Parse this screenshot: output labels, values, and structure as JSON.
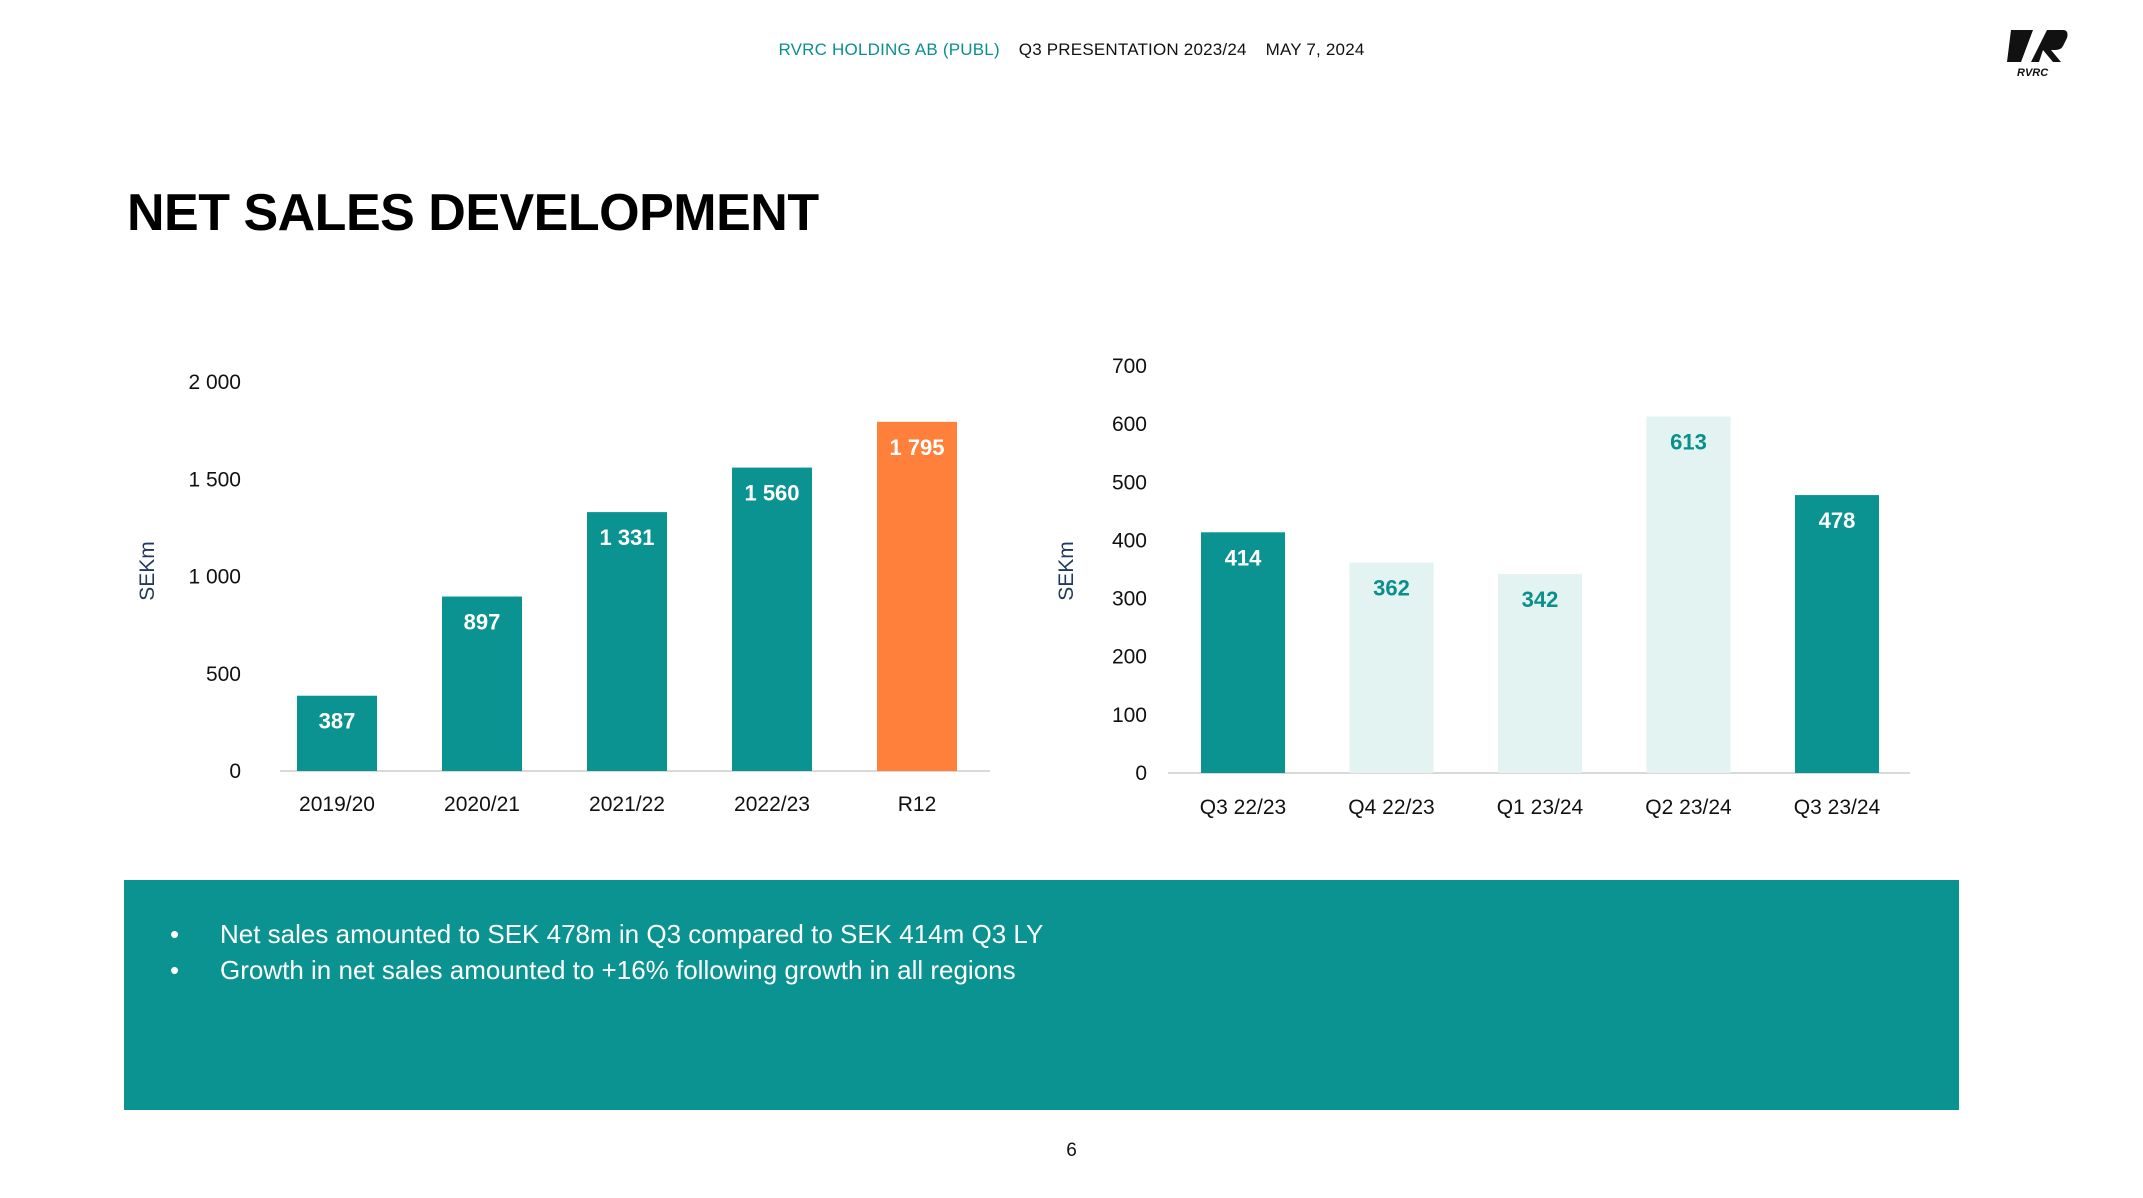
{
  "header": {
    "company": "RVRC HOLDING AB (PUBL)",
    "presentation": "Q3 PRESENTATION 2023/24",
    "date": "MAY 7, 2024"
  },
  "logo": {
    "text": "RVRC",
    "icon": "rvrc-logo"
  },
  "page_title": "NET SALES DEVELOPMENT",
  "colors": {
    "teal": "#0a9390",
    "orange": "#fe803a",
    "light": "#e3f3f2",
    "teal_text": "#0b8f8d"
  },
  "chart_data": [
    {
      "type": "bar",
      "title": "",
      "xlabel": "",
      "ylabel": "SEKm",
      "ylim": [
        0,
        2000
      ],
      "yticks": [
        0,
        500,
        1000,
        1500,
        2000
      ],
      "ytick_labels": [
        "0",
        "500",
        "1 000",
        "1 500",
        "2 000"
      ],
      "categories": [
        "2019/20",
        "2020/21",
        "2021/22",
        "2022/23",
        "R12"
      ],
      "values": [
        387,
        897,
        1331,
        1560,
        1795
      ],
      "value_labels": [
        "387",
        "897",
        "1 331",
        "1 560",
        "1 795"
      ],
      "bar_styles": [
        "teal",
        "teal",
        "teal",
        "teal",
        "orange"
      ],
      "grid": false
    },
    {
      "type": "bar",
      "title": "",
      "xlabel": "",
      "ylabel": "SEKm",
      "ylim": [
        0,
        700
      ],
      "yticks": [
        0,
        100,
        200,
        300,
        400,
        500,
        600,
        700
      ],
      "ytick_labels": [
        "0",
        "100",
        "200",
        "300",
        "400",
        "500",
        "600",
        "700"
      ],
      "categories": [
        "Q3 22/23",
        "Q4 22/23",
        "Q1 23/24",
        "Q2 23/24",
        "Q3 23/24"
      ],
      "values": [
        414,
        362,
        342,
        613,
        478
      ],
      "value_labels": [
        "414",
        "362",
        "342",
        "613",
        "478"
      ],
      "bar_styles": [
        "teal",
        "light",
        "light",
        "light",
        "teal"
      ],
      "grid": false
    }
  ],
  "summary": {
    "bullet": "•",
    "points": [
      "Net sales amounted to SEK 478m in Q3 compared to SEK 414m Q3 LY",
      "Growth in net sales amounted to +16% following growth in all regions"
    ]
  },
  "page_number": "6"
}
